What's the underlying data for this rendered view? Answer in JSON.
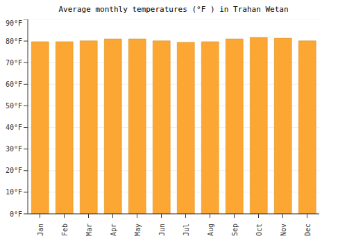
{
  "chart_data": {
    "type": "bar",
    "title": "Average monthly temperatures (°F ) in Trahan Wetan",
    "categories": [
      "Jan",
      "Feb",
      "Mar",
      "Apr",
      "May",
      "Jun",
      "Jul",
      "Aug",
      "Sep",
      "Oct",
      "Nov",
      "Dec"
    ],
    "values": [
      79.7,
      79.7,
      80.1,
      81.0,
      81.0,
      80.1,
      79.4,
      79.7,
      81.0,
      81.7,
      81.3,
      80.1
    ],
    "color": "#fca733",
    "ylim": [
      0,
      90
    ],
    "yticks": [
      {
        "value": 0,
        "label": "0°F"
      },
      {
        "value": 10,
        "label": "10°F"
      },
      {
        "value": 20,
        "label": "20°F"
      },
      {
        "value": 30,
        "label": "30°F"
      },
      {
        "value": 40,
        "label": "40°F"
      },
      {
        "value": 50,
        "label": "50°F"
      },
      {
        "value": 60,
        "label": "60°F"
      },
      {
        "value": 70,
        "label": "70°F"
      },
      {
        "value": 80,
        "label": "80°F"
      },
      {
        "value": 90,
        "label": "90°F"
      }
    ],
    "grid": true
  }
}
